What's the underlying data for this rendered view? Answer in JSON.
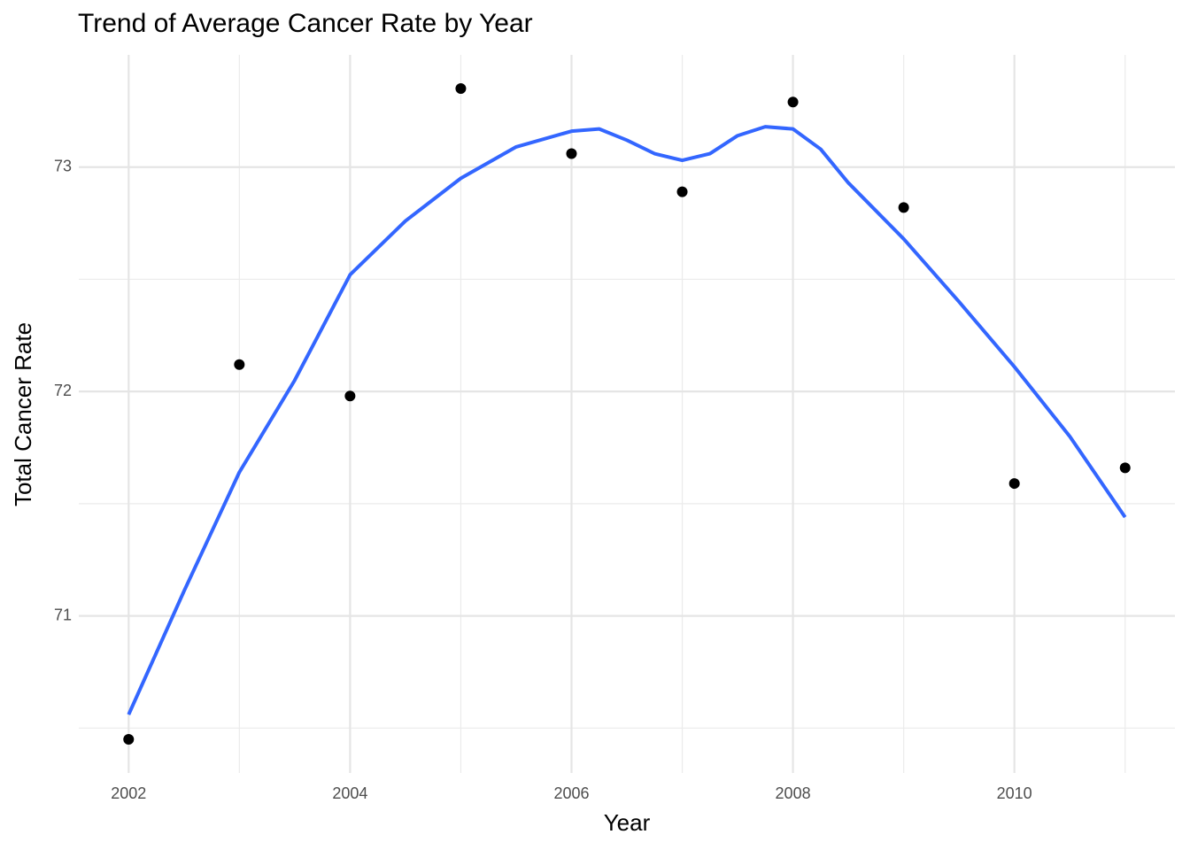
{
  "chart_data": {
    "type": "scatter",
    "title": "Trend of Average Cancer Rate by Year",
    "x_label": "Year",
    "y_label": "Total Cancer Rate",
    "points": {
      "x": [
        2002,
        2003,
        2004,
        2005,
        2006,
        2007,
        2008,
        2009,
        2010,
        2011
      ],
      "y": [
        70.45,
        72.12,
        71.98,
        73.35,
        73.06,
        72.89,
        73.29,
        72.82,
        71.59,
        71.66
      ],
      "color": "#000000"
    },
    "smooth": {
      "x": [
        2002,
        2002.5,
        2003,
        2003.5,
        2004,
        2004.5,
        2005,
        2005.5,
        2006,
        2006.25,
        2006.5,
        2006.75,
        2007,
        2007.25,
        2007.5,
        2007.75,
        2008,
        2008.25,
        2008.5,
        2009,
        2009.5,
        2010,
        2010.5,
        2011
      ],
      "y": [
        70.56,
        71.11,
        71.64,
        72.05,
        72.52,
        72.76,
        72.95,
        73.09,
        73.16,
        73.17,
        73.12,
        73.06,
        73.03,
        73.06,
        73.14,
        73.18,
        73.17,
        73.08,
        72.93,
        72.68,
        72.4,
        72.11,
        71.8,
        71.44
      ],
      "color": "#3366ff"
    },
    "xlim": [
      2001.55,
      2011.45
    ],
    "ylim": [
      70.3,
      73.5
    ],
    "xticks": [
      2002,
      2004,
      2006,
      2008,
      2010
    ],
    "yticks": [
      71,
      72,
      73
    ],
    "x_minor_ticks": [
      2003,
      2005,
      2007,
      2009,
      2011
    ],
    "y_minor_ticks": [
      70.5,
      71.5,
      72.5
    ],
    "grid": true
  }
}
